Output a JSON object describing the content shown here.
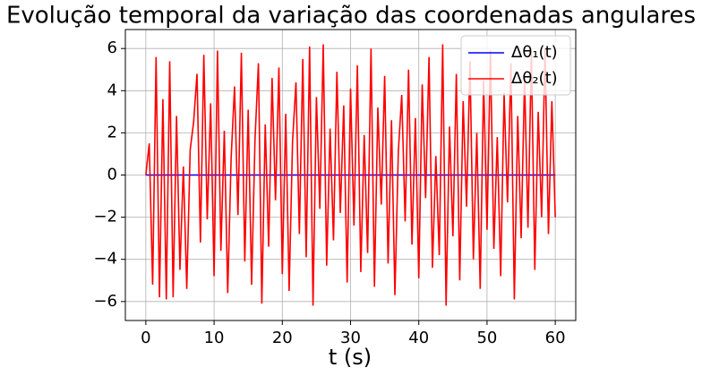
{
  "chart_data": {
    "type": "line",
    "title": "Evolução temporal da variação das coordenadas angulares",
    "xlabel": "t (s)",
    "x": [
      0,
      0.5,
      1,
      1.5,
      2,
      2.5,
      3,
      3.5,
      4,
      4.5,
      5,
      5.5,
      6,
      6.5,
      7,
      7.5,
      8,
      8.5,
      9,
      9.5,
      10,
      10.5,
      11,
      11.5,
      12,
      12.5,
      13,
      13.5,
      14,
      14.5,
      15,
      15.5,
      16,
      16.5,
      17,
      17.5,
      18,
      18.5,
      19,
      19.5,
      20,
      20.5,
      21,
      21.5,
      22,
      22.5,
      23,
      23.5,
      24,
      24.5,
      25,
      25.5,
      26,
      26.5,
      27,
      27.5,
      28,
      28.5,
      29,
      29.5,
      30,
      30.5,
      31,
      31.5,
      32,
      32.5,
      33,
      33.5,
      34,
      34.5,
      35,
      35.5,
      36,
      36.5,
      37,
      37.5,
      38,
      38.5,
      39,
      39.5,
      40,
      40.5,
      41,
      41.5,
      42,
      42.5,
      43,
      43.5,
      44,
      44.5,
      45,
      45.5,
      46,
      46.5,
      47,
      47.5,
      48,
      48.5,
      49,
      49.5,
      50,
      50.5,
      51,
      51.5,
      52,
      52.5,
      53,
      53.5,
      54,
      54.5,
      55,
      55.5,
      56,
      56.5,
      57,
      57.5,
      58,
      58.5,
      59,
      59.5,
      60
    ],
    "series": [
      {
        "name": "Δθ₁(t)",
        "color": "#0000ff",
        "values": [
          0,
          0,
          0,
          0,
          0,
          0,
          0,
          0,
          0,
          0,
          0,
          0,
          0,
          0,
          0,
          0,
          0,
          0,
          0,
          0,
          0,
          0,
          0,
          0,
          0,
          0,
          0,
          0,
          0,
          0,
          0,
          0,
          0,
          0,
          0,
          0,
          0,
          0,
          0,
          0,
          0,
          0,
          0,
          0,
          0,
          0,
          0,
          0,
          0,
          0,
          0,
          0,
          0,
          0,
          0,
          0,
          0,
          0,
          0,
          0,
          0,
          0,
          0,
          0,
          0,
          0,
          0,
          0,
          0,
          0,
          0,
          0,
          0,
          0,
          0,
          0,
          0,
          0,
          0,
          0,
          0,
          0,
          0,
          0,
          0,
          0,
          0,
          0,
          0,
          0,
          0,
          0,
          0,
          0,
          0,
          0,
          0,
          0,
          0,
          0,
          0,
          0,
          0,
          0,
          0,
          0,
          0,
          0,
          0,
          0,
          0,
          0,
          0,
          0,
          0,
          0,
          0,
          0,
          0,
          0,
          0
        ]
      },
      {
        "name": "Δθ₂(t)",
        "color": "#ff0000",
        "values": [
          0,
          1.5,
          -5.2,
          5.6,
          -5.8,
          3.6,
          -5.9,
          5.4,
          -5.8,
          2.8,
          -4.5,
          0.4,
          -5.4,
          1.2,
          2.5,
          4.8,
          -3.2,
          5.7,
          -2.1,
          3.4,
          -4.8,
          5.9,
          -3.6,
          2.1,
          -5.6,
          0.8,
          4.2,
          -1.9,
          5.8,
          -4.1,
          3.1,
          -5.2,
          1.7,
          5.3,
          -6.1,
          2.4,
          -3.4,
          4.6,
          -1.2,
          5.1,
          -4.7,
          2.9,
          -5.5,
          1.6,
          4.4,
          -2.8,
          5.5,
          -3.9,
          6.1,
          -6.2,
          3.7,
          -1.6,
          6.2,
          -4.3,
          2.2,
          -3.1,
          4.9,
          -1.8,
          3.3,
          -5.1,
          4.1,
          -2.4,
          5.2,
          -4.6,
          1.9,
          -3.7,
          6.0,
          -5.3,
          3.2,
          -1.4,
          4.7,
          -4.2,
          2.6,
          -5.7,
          1.1,
          3.8,
          -2.2,
          5.0,
          -3.3,
          2.7,
          -4.9,
          4.3,
          -1.1,
          5.6,
          -4.4,
          0.9,
          -3.8,
          6.2,
          -6.2,
          2.3,
          -2.9,
          4.8,
          -5.0,
          3.5,
          -1.5,
          5.4,
          -4.0,
          2.0,
          -5.4,
          4.5,
          -2.6,
          5.9,
          -3.5,
          1.8,
          -4.8,
          3.9,
          -1.3,
          5.3,
          -5.9,
          2.8,
          -3.0,
          4.6,
          -2.5,
          5.8,
          -4.5,
          3.0,
          -2.0,
          6.0,
          -2.8,
          3.5,
          -2.0
        ]
      }
    ],
    "xlim": [
      -3,
      63
    ],
    "ylim": [
      -6.9,
      6.9
    ],
    "xticks": [
      0,
      10,
      20,
      30,
      40,
      50,
      60
    ],
    "yticks": [
      {
        "value": -6,
        "label": "−6"
      },
      {
        "value": -4,
        "label": "−4"
      },
      {
        "value": -2,
        "label": "−2"
      },
      0,
      2,
      4,
      6
    ],
    "grid": true,
    "legend": "upper right"
  }
}
